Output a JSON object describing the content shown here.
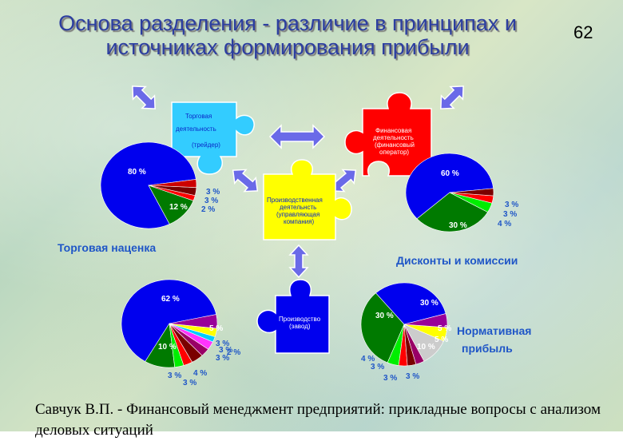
{
  "title": "Основа разделения - различие в принципах и источниках формирования прибыли",
  "slide_number": "62",
  "footer": "Савчук В.П. - Финансовый менеджмент предприятий: прикладные вопросы с анализом деловых ситуаций",
  "puzzles": {
    "trade": {
      "lines": [
        "Торговая",
        "деятельность",
        "(трейдер)"
      ],
      "color": "#33ccff"
    },
    "finance": {
      "lines": [
        "Финансовая",
        "деятельность",
        "(финансовый",
        "оператор)"
      ],
      "color": "#ff0000"
    },
    "production": {
      "lines": [
        "Производственная",
        "деятельнсть",
        "(управляющая",
        "компания)"
      ],
      "color": "#ffff00"
    },
    "factory": {
      "lines": [
        "Производство",
        "(завод)"
      ],
      "color": "#0000ee"
    }
  },
  "captions": {
    "trade": "Торговая наценка",
    "finance": "Дисконты и комиссии",
    "normative_1": "Нормативная",
    "normative_2": "прибыль"
  },
  "chart_data": [
    {
      "type": "pie",
      "name": "trade",
      "values": [
        80,
        12,
        2,
        3,
        3
      ],
      "labels": [
        "80 %",
        "12 %",
        "2 %",
        "3 %",
        "3 %"
      ],
      "colors": [
        "#0000ee",
        "#007a00",
        "#ff0000",
        "#7a0000",
        "#cc0000"
      ]
    },
    {
      "type": "pie",
      "name": "finance",
      "values": [
        60,
        30,
        4,
        3,
        3
      ],
      "labels": [
        "60 %",
        "30 %",
        "4 %",
        "3 %",
        "3 %"
      ],
      "colors": [
        "#0000ee",
        "#007a00",
        "#00ee00",
        "#ff0000",
        "#7a0000"
      ]
    },
    {
      "type": "pie",
      "name": "production",
      "values": [
        62,
        10,
        3,
        3,
        4,
        3,
        3,
        2,
        3,
        5
      ],
      "labels": [
        "62 %",
        "10 %",
        "3 %",
        "3 %",
        "4 %",
        "3 %",
        "3 %",
        "2 %",
        "3 %",
        "5 %"
      ],
      "colors": [
        "#0000ee",
        "#007a00",
        "#00ee00",
        "#ff0000",
        "#7a0000",
        "#990066",
        "#ff33ff",
        "#00ccff",
        "#ffff00",
        "#990099"
      ]
    },
    {
      "type": "pie",
      "name": "factory",
      "values": [
        30,
        30,
        4,
        3,
        3,
        3,
        10,
        5,
        5
      ],
      "labels": [
        "30 %",
        "30 %",
        "4 %",
        "3 %",
        "3 %",
        "3 %",
        "10 %",
        "5 %",
        "5 %"
      ],
      "colors": [
        "#0000ee",
        "#007a00",
        "#00ee00",
        "#ff0000",
        "#7a0000",
        "#990066",
        "#cccccc",
        "#ffff00",
        "#990099"
      ]
    }
  ]
}
